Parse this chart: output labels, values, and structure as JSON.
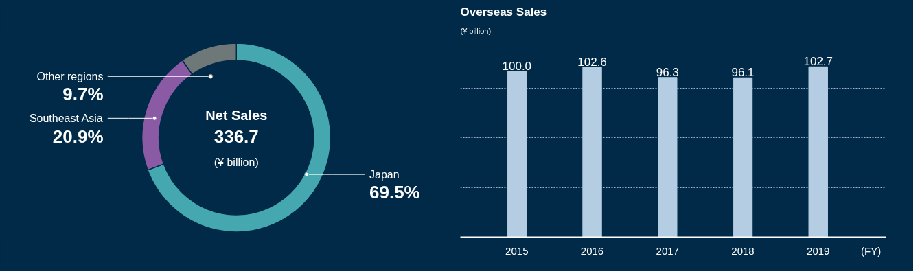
{
  "chart_data": [
    {
      "type": "donut",
      "title": "Net Sales",
      "annotations": [
        "336.7",
        "(¥ billion)"
      ],
      "categories": [
        "Japan",
        "Southeast Asia",
        "Other regions"
      ],
      "values": [
        69.5,
        20.9,
        9.7
      ],
      "colors": [
        "#45a8b0",
        "#8a5aa5",
        "#6e7878"
      ],
      "value_labels": [
        "69.5%",
        "20.9%",
        "9.7%"
      ]
    },
    {
      "type": "bar",
      "title": "Overseas Sales",
      "ylabel": "(¥ billion)",
      "xlabel": "(FY)",
      "categories": [
        "2015",
        "2016",
        "2017",
        "2018",
        "2019"
      ],
      "values": [
        100.0,
        102.6,
        96.3,
        96.1,
        102.7
      ],
      "color": "#b4cde2",
      "ylim": [
        0,
        120
      ],
      "yticks": [
        {
          "value": 0,
          "label": null
        },
        {
          "value": 30,
          "label": null
        },
        {
          "value": 60,
          "label": null
        },
        {
          "value": 90,
          "label": null
        },
        {
          "value": 120,
          "label": null
        }
      ],
      "grid": "y",
      "tick_labels": "x",
      "value_labels": [
        "100.0",
        "102.6",
        "96.3",
        "96.1",
        "102.7"
      ]
    }
  ]
}
